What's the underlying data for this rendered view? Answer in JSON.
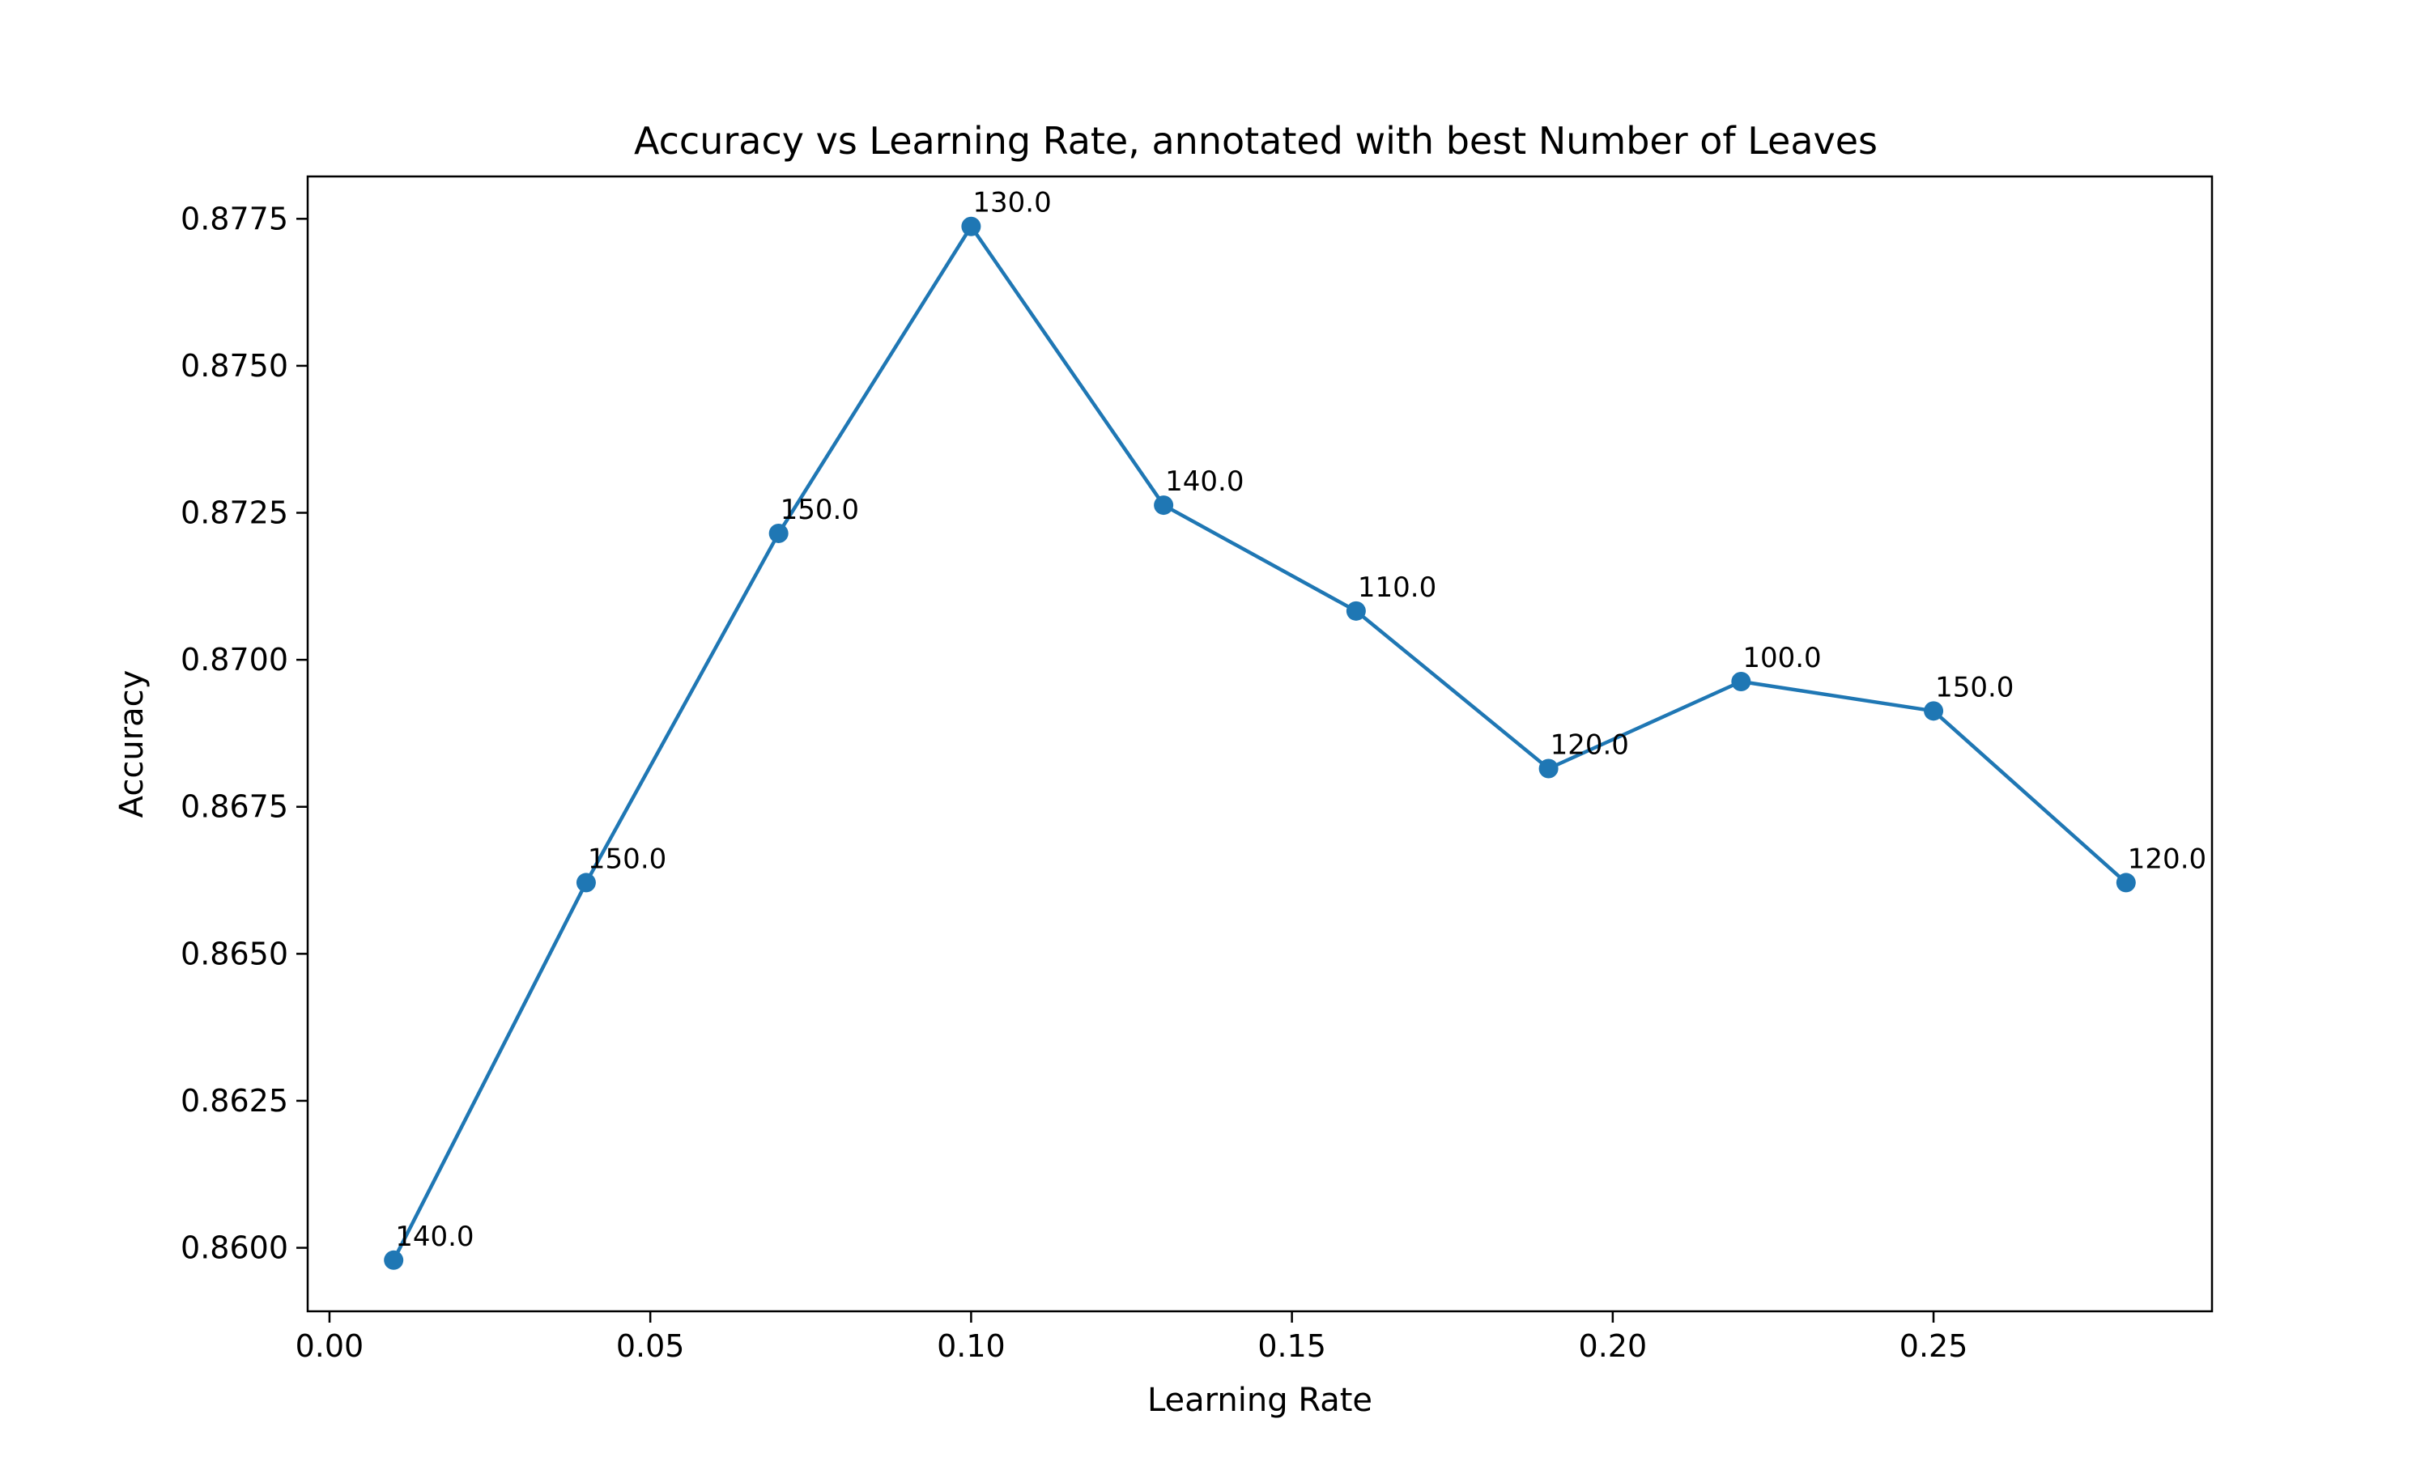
{
  "chart_data": {
    "type": "line",
    "title": "Accuracy vs Learning Rate, annotated with best Number of Leaves",
    "xlabel": "Learning Rate",
    "ylabel": "Accuracy",
    "xlim": [
      -0.0034,
      0.2934
    ],
    "ylim": [
      0.85892,
      0.87822
    ],
    "x_ticks": [
      0.0,
      0.05,
      0.1,
      0.15,
      0.2,
      0.25
    ],
    "x_tick_labels": [
      "0.00",
      "0.05",
      "0.10",
      "0.15",
      "0.20",
      "0.25"
    ],
    "y_ticks": [
      0.86,
      0.8625,
      0.865,
      0.8675,
      0.87,
      0.8725,
      0.875,
      0.8775
    ],
    "y_tick_labels": [
      "0.8600",
      "0.8625",
      "0.8650",
      "0.8675",
      "0.8700",
      "0.8725",
      "0.8750",
      "0.8775"
    ],
    "grid": false,
    "color": "#1f77b4",
    "series": [
      {
        "x": [
          0.01,
          0.04,
          0.07,
          0.1,
          0.13,
          0.16,
          0.19,
          0.22,
          0.25,
          0.28
        ],
        "y": [
          0.85979,
          0.86621,
          0.87215,
          0.87737,
          0.87263,
          0.87083,
          0.86815,
          0.86963,
          0.86913,
          0.86621
        ],
        "labels": [
          "140.0",
          "150.0",
          "150.0",
          "130.0",
          "140.0",
          "110.0",
          "120.0",
          "100.0",
          "150.0",
          "120.0"
        ]
      }
    ]
  }
}
